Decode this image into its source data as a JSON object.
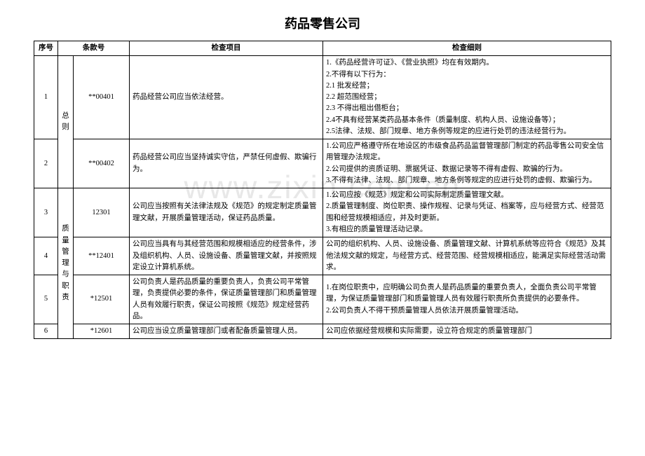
{
  "title": "药品零售公司",
  "watermark": "www.zixin.com.cn",
  "header": {
    "seq": "序号",
    "clause": "条款号",
    "item": "检查项目",
    "rule": "检查细则"
  },
  "sections": {
    "s1": "总则",
    "s2": "质量管理与职责"
  },
  "rows": {
    "r1": {
      "seq": "1",
      "clause": "**00401",
      "item": "药品经营公司应当依法经营。",
      "rule": "1.《药品经营许可证》、《营业执照》均在有效期内。\n2.不得有以下行为：\n2.1 批发经营；\n2.2 超范围经营；\n2.3 不得出租出借柜台；\n2.4不具有经营某类药品基本条件（质量制度、机构人员、设施设备等）；\n2.5法律、法规、部门规章、地方条例等规定的应进行处罚的违法经营行为。"
    },
    "r2": {
      "seq": "2",
      "clause": "**00402",
      "item": "药品经营公司应当坚持诚实守信，严禁任何虚假、欺骗行为。",
      "rule": "1.公司应严格遵守所在地设区的市级食品药品监督管理部门制定的药品零售公司安全信用管理办法规定。\n2.公司提供的资质证明、票据凭证、数据记录等不得有虚假、欺骗的行为。\n3.不得有法律、法规、部门规章、地方条例等规定的应进行处罚的虚假、欺骗行为。"
    },
    "r3": {
      "seq": "3",
      "clause": "12301",
      "item": "公司应当按照有关法律法规及《规范》的规定制定质量管理文献，开展质量管理活动，保证药品质量。",
      "rule": "1.公司应按《规范》规定和公司实际制定质量管理文献。\n2.质量管理制度、岗位职责、操作规程、记录与凭证、档案等，应与经营方式、经营范围和经营规模相适应，并及时更新。\n3.有相应的质量管理活动记录。"
    },
    "r4": {
      "seq": "4",
      "clause": "**12401",
      "item": "公司应当具有与其经营范围和规模相适应的经营条件，涉及组织机构、人员、设施设备、质量管理文献，并按照规定设立计算机系统。",
      "rule": "公司的组织机构、人员、设施设备、质量管理文献、计算机系统等应符合《规范》及其他法规文献的规定，与经营方式、经营范围、经营规模相适应，能满足实际经营活动需求。"
    },
    "r5": {
      "seq": "5",
      "clause": "*12501",
      "item": "公司负责人是药品质量的重要负责人，负责公司平常管理，负责提供必要的条件，保证质量管理部门和质量管理人员有效履行职责，保证公司按照《规范》规定经营药品。",
      "rule": "1.在岗位职责中，应明确公司负责人是药品质量的重要负责人，全面负责公司平常管理，为保证质量管理部门和质量管理人员有效履行职责所负责提供的必要条件。\n2.公司负责人不得干预质量管理人员依法开展质量管理活动。"
    },
    "r6": {
      "seq": "6",
      "clause": "*12601",
      "item": "公司应当设立质量管理部门或者配备质量管理人员。",
      "rule": "公司应依据经营规模和实际需要，设立符合规定的质量管理部门"
    }
  }
}
